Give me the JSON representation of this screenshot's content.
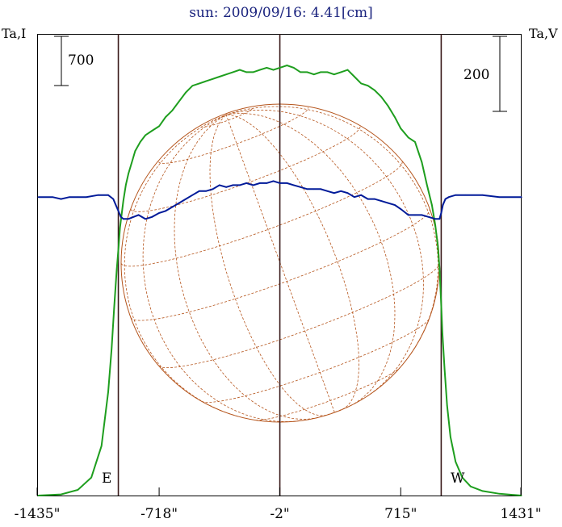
{
  "header": {
    "title": "sun: 2009/09/16: 4.41[cm]",
    "left_axis_label": "Ta,I",
    "right_axis_label": "Ta,V",
    "left_scale_label": "700",
    "right_scale_label": "200",
    "east_label": "E",
    "west_label": "W"
  },
  "colors": {
    "title": "#1a237e",
    "intensity": "#1e9e1e",
    "polarization": "#001a99",
    "disk": "#b5541b",
    "limb_lines": "#3a1a1a",
    "frame": "#000000"
  },
  "chart_data": {
    "type": "line",
    "title": "sun: 2009/09/16: 4.41[cm]",
    "xlabel": "",
    "ylabel_left": "Ta,I",
    "ylabel_right": "Ta,V",
    "xlim": [
      -1435,
      1431
    ],
    "x_ticks": [
      {
        "value": -1435,
        "label": "-1435\""
      },
      {
        "value": -718,
        "label": "-718\""
      },
      {
        "value": -2,
        "label": "-2\""
      },
      {
        "value": 715,
        "label": "715\""
      },
      {
        "value": 1431,
        "label": "1431\""
      }
    ],
    "limb_markers": [
      {
        "name": "E",
        "x": -960
      },
      {
        "name": "center",
        "x": -2
      },
      {
        "name": "W",
        "x": 955
      }
    ],
    "scale_bars": {
      "intensity": 700,
      "polarization": 200
    },
    "series": [
      {
        "key": "intensity",
        "axis": "left",
        "ylim": [
          0,
          2050
        ],
        "x": [
          -1435,
          -1300,
          -1200,
          -1120,
          -1060,
          -1020,
          -1000,
          -985,
          -970,
          -958,
          -950,
          -940,
          -930,
          -915,
          -900,
          -880,
          -860,
          -830,
          -800,
          -760,
          -718,
          -680,
          -640,
          -600,
          -560,
          -520,
          -480,
          -440,
          -400,
          -360,
          -320,
          -280,
          -240,
          -200,
          -160,
          -120,
          -80,
          -40,
          -2,
          40,
          80,
          120,
          160,
          200,
          240,
          280,
          320,
          360,
          400,
          440,
          480,
          520,
          560,
          600,
          640,
          680,
          715,
          760,
          800,
          840,
          870,
          900,
          920,
          935,
          945,
          953,
          962,
          975,
          990,
          1010,
          1040,
          1080,
          1130,
          1200,
          1300,
          1431
        ],
        "values": [
          0,
          5,
          25,
          80,
          220,
          460,
          650,
          830,
          1000,
          1110,
          1190,
          1250,
          1310,
          1380,
          1430,
          1480,
          1530,
          1570,
          1600,
          1620,
          1640,
          1680,
          1710,
          1750,
          1790,
          1820,
          1830,
          1840,
          1850,
          1860,
          1870,
          1880,
          1890,
          1880,
          1880,
          1890,
          1900,
          1890,
          1900,
          1910,
          1900,
          1880,
          1880,
          1870,
          1880,
          1880,
          1870,
          1880,
          1890,
          1860,
          1830,
          1820,
          1800,
          1770,
          1730,
          1680,
          1630,
          1590,
          1570,
          1480,
          1380,
          1290,
          1200,
          1110,
          1010,
          880,
          720,
          560,
          400,
          260,
          150,
          80,
          40,
          20,
          8,
          0
        ]
      },
      {
        "key": "polarization",
        "axis": "right",
        "ylim": [
          -750,
          410
        ],
        "x": [
          -1435,
          -1350,
          -1300,
          -1250,
          -1200,
          -1150,
          -1080,
          -1020,
          -990,
          -975,
          -960,
          -945,
          -930,
          -900,
          -870,
          -840,
          -800,
          -760,
          -718,
          -680,
          -640,
          -600,
          -560,
          -520,
          -480,
          -440,
          -400,
          -360,
          -320,
          -280,
          -240,
          -200,
          -160,
          -120,
          -80,
          -40,
          -2,
          40,
          80,
          120,
          160,
          200,
          240,
          280,
          320,
          360,
          400,
          440,
          480,
          520,
          560,
          600,
          640,
          680,
          715,
          760,
          800,
          840,
          880,
          920,
          945,
          955,
          965,
          980,
          1000,
          1040,
          1100,
          1200,
          1300,
          1431
        ],
        "values": [
          0,
          0,
          -5,
          0,
          0,
          0,
          5,
          5,
          -5,
          -20,
          -35,
          -50,
          -55,
          -55,
          -50,
          -45,
          -55,
          -50,
          -40,
          -35,
          -25,
          -15,
          -5,
          5,
          15,
          15,
          20,
          30,
          25,
          30,
          30,
          35,
          30,
          35,
          35,
          40,
          35,
          35,
          30,
          25,
          20,
          20,
          20,
          15,
          10,
          15,
          10,
          0,
          5,
          -5,
          -5,
          -10,
          -15,
          -20,
          -30,
          -45,
          -45,
          -45,
          -50,
          -55,
          -55,
          -40,
          -20,
          -5,
          0,
          5,
          5,
          5,
          0,
          0
        ]
      }
    ]
  }
}
